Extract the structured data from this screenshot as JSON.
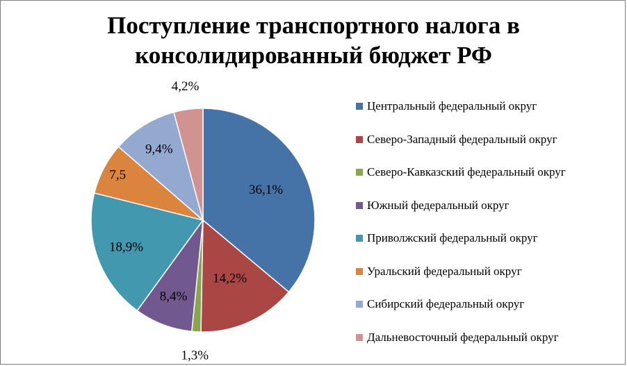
{
  "chart_data": {
    "type": "pie",
    "title": "Поступление транспортного налога в консолидированный бюджет РФ",
    "title_lines": [
      "Поступление транспортного налога в",
      "консолидированный бюджет РФ"
    ],
    "legend_position": "right",
    "slices": [
      {
        "name": "Центральный федеральный округ",
        "value": 36.1,
        "label": "36,1%",
        "color": "#4572a7"
      },
      {
        "name": "Северо-Западный федеральный округ",
        "value": 14.2,
        "label": "14,2%",
        "color": "#aa4643"
      },
      {
        "name": "Северо-Кавказский федеральный округ",
        "value": 1.3,
        "label": "1,3%",
        "color": "#89a54e"
      },
      {
        "name": "Южный федеральный округ",
        "value": 8.4,
        "label": "8,4%",
        "color": "#71588f"
      },
      {
        "name": "Приволжский федеральный округ",
        "value": 18.9,
        "label": "18,9%",
        "color": "#4198af"
      },
      {
        "name": "Уральский федеральный округ",
        "value": 7.5,
        "label": "7,5",
        "color": "#db843d"
      },
      {
        "name": "Сибирский федеральный округ",
        "value": 9.4,
        "label": "9,4%",
        "color": "#93a9cf"
      },
      {
        "name": "Дальневосточный федеральный округ",
        "value": 4.2,
        "label": "4,2%",
        "color": "#d19392"
      }
    ]
  }
}
